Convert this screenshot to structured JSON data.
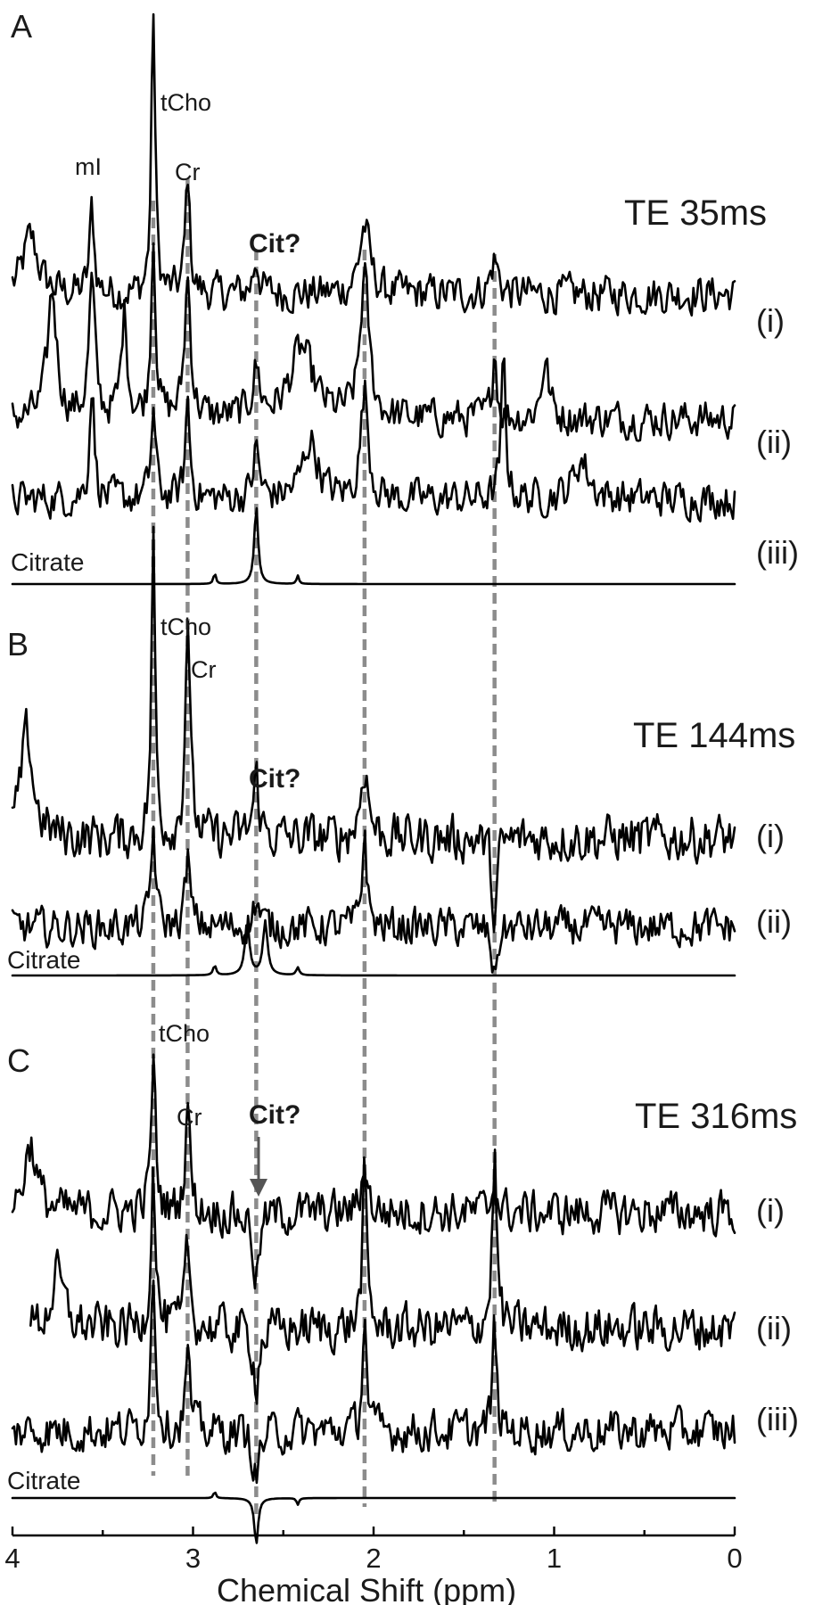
{
  "chart_data": {
    "type": "line",
    "description_of_axis": "shared horizontal chemical-shift axis, reversed (4 ppm at left, 0 ppm at right)",
    "xlabel": "Chemical Shift (ppm)",
    "xlim": [
      4,
      0
    ],
    "x_ticks": [
      "4",
      "3",
      "2",
      "1",
      "0"
    ],
    "guide_lines_ppm": [
      3.22,
      3.03,
      2.65,
      2.05,
      1.33
    ],
    "panels": [
      {
        "letter": "A",
        "te": "TE 35ms",
        "peak_labels": [
          "mI",
          "tCho",
          "Cr"
        ],
        "cit_label": "Cit?",
        "citrate_label": "Citrate",
        "series": [
          {
            "name": "(i)",
            "baseline_norm": 0.43,
            "noise": 0.05,
            "peaks": [
              [
                3.22,
                1.0,
                0.025
              ],
              [
                3.03,
                0.42,
                0.03
              ],
              [
                3.56,
                0.3,
                0.03
              ],
              [
                2.65,
                0.12,
                0.04
              ],
              [
                2.05,
                0.24,
                0.07
              ],
              [
                1.33,
                0.12,
                0.05
              ],
              [
                3.9,
                0.2,
                0.1
              ]
            ]
          },
          {
            "name": "(ii)",
            "baseline_norm": 0.46,
            "noise": 0.06,
            "peaks": [
              [
                3.22,
                0.78,
                0.03
              ],
              [
                3.03,
                0.6,
                0.04
              ],
              [
                3.56,
                0.58,
                0.04
              ],
              [
                3.38,
                0.45,
                0.04
              ],
              [
                3.78,
                0.55,
                0.06
              ],
              [
                2.65,
                0.2,
                0.05
              ],
              [
                2.05,
                0.6,
                0.06
              ],
              [
                1.33,
                0.3,
                0.03
              ],
              [
                1.05,
                0.25,
                0.05
              ],
              [
                2.4,
                0.3,
                0.15
              ]
            ]
          },
          {
            "name": "(iii)",
            "baseline_norm": 0.4,
            "noise": 0.07,
            "peaks": [
              [
                3.22,
                0.45,
                0.03
              ],
              [
                3.03,
                0.5,
                0.03
              ],
              [
                3.56,
                0.6,
                0.03
              ],
              [
                2.65,
                0.25,
                0.04
              ],
              [
                2.05,
                0.55,
                0.05
              ],
              [
                1.28,
                0.7,
                0.03
              ],
              [
                2.35,
                0.3,
                0.1
              ],
              [
                0.85,
                0.2,
                0.1
              ]
            ]
          },
          {
            "name": "Citrate",
            "baseline_norm": 0.0,
            "noise": 0.0,
            "peaks": [
              [
                2.65,
                0.55,
                0.025
              ],
              [
                2.88,
                0.08,
                0.015
              ],
              [
                2.42,
                0.06,
                0.015
              ]
            ]
          }
        ]
      },
      {
        "letter": "B",
        "te": "TE 144ms",
        "peak_labels": [
          "tCho",
          "Cr"
        ],
        "cit_label": "Cit?",
        "citrate_label": "Citrate",
        "series": [
          {
            "name": "(i)",
            "baseline_norm": 0.35,
            "noise": 0.06,
            "peaks": [
              [
                3.22,
                1.0,
                0.025
              ],
              [
                3.03,
                0.78,
                0.03
              ],
              [
                3.92,
                0.35,
                0.08
              ],
              [
                2.65,
                0.2,
                0.04
              ],
              [
                2.05,
                0.25,
                0.05
              ],
              [
                1.33,
                -0.3,
                0.03
              ]
            ]
          },
          {
            "name": "(ii)",
            "baseline_norm": 0.4,
            "noise": 0.08,
            "peaks": [
              [
                3.22,
                0.55,
                0.03
              ],
              [
                3.03,
                0.4,
                0.03
              ],
              [
                2.65,
                0.15,
                0.04
              ],
              [
                2.05,
                0.55,
                0.03
              ],
              [
                1.33,
                -0.3,
                0.03
              ]
            ]
          },
          {
            "name": "Citrate",
            "baseline_norm": 0.0,
            "noise": 0.0,
            "peaks": [
              [
                2.7,
                0.55,
                0.03
              ],
              [
                2.6,
                0.55,
                0.03
              ],
              [
                2.88,
                0.1,
                0.02
              ],
              [
                2.42,
                0.08,
                0.02
              ]
            ]
          }
        ]
      },
      {
        "letter": "C",
        "te": "TE 316ms",
        "peak_labels": [
          "tCho",
          "Cr"
        ],
        "cit_label": "Cit?",
        "citrate_label": "Citrate",
        "series": [
          {
            "name": "(i)",
            "baseline_norm": 0.45,
            "noise": 0.07,
            "peaks": [
              [
                3.22,
                0.65,
                0.03
              ],
              [
                3.03,
                0.5,
                0.03
              ],
              [
                2.65,
                -0.3,
                0.04
              ],
              [
                2.05,
                0.2,
                0.04
              ],
              [
                1.33,
                0.15,
                0.03
              ],
              [
                3.9,
                0.3,
                0.08
              ]
            ]
          },
          {
            "name": "(ii)",
            "baseline_norm": 0.4,
            "noise": 0.08,
            "peaks": [
              [
                3.22,
                0.75,
                0.03
              ],
              [
                3.03,
                0.4,
                0.03
              ],
              [
                2.65,
                -0.25,
                0.04
              ],
              [
                2.05,
                0.7,
                0.03
              ],
              [
                1.33,
                0.8,
                0.03
              ],
              [
                3.75,
                0.25,
                0.08
              ]
            ]
          },
          {
            "name": "(iii)",
            "baseline_norm": 0.42,
            "noise": 0.08,
            "peaks": [
              [
                3.22,
                0.8,
                0.03
              ],
              [
                3.03,
                0.4,
                0.03
              ],
              [
                2.65,
                -0.25,
                0.04
              ],
              [
                2.05,
                0.65,
                0.025
              ],
              [
                1.33,
                0.55,
                0.025
              ]
            ]
          },
          {
            "name": "Citrate",
            "baseline_norm": 0.0,
            "noise": 0.0,
            "peaks": [
              [
                2.65,
                -0.55,
                0.025
              ],
              [
                2.88,
                0.08,
                0.015
              ],
              [
                2.42,
                -0.08,
                0.015
              ]
            ]
          }
        ]
      }
    ]
  }
}
